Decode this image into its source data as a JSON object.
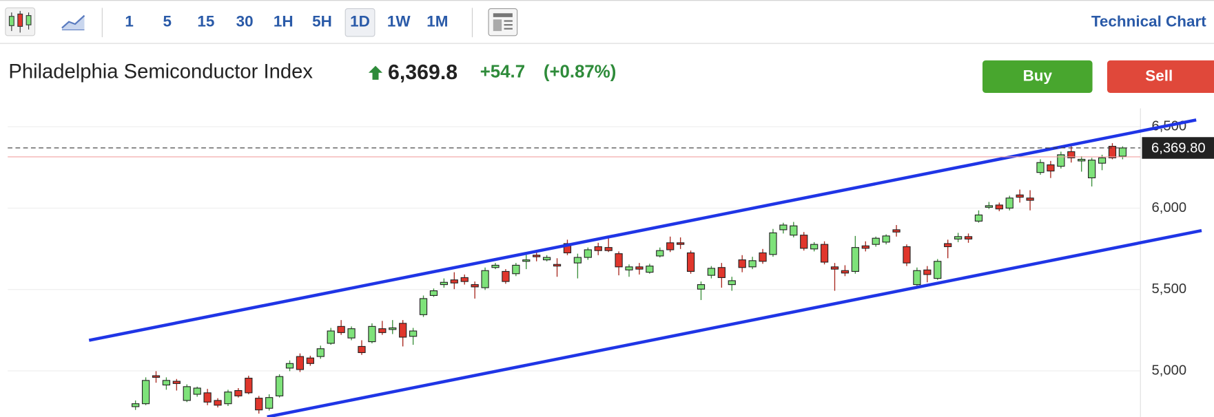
{
  "toolbar": {
    "intervals": [
      "1",
      "5",
      "15",
      "30",
      "1H",
      "5H",
      "1D",
      "1W",
      "1M"
    ],
    "selected": "1D",
    "link": "Technical Chart"
  },
  "header": {
    "title": "Philadelphia Semiconductor Index",
    "price": "6,369.8",
    "change": "+54.7",
    "change_percent": "(+0.87%)",
    "buy": "Buy",
    "sell": "Sell"
  },
  "chart_data": {
    "type": "candlestick",
    "ylim": [
      4717,
      6613
    ],
    "yticks": [
      {
        "value": 5000,
        "label": "5,000"
      },
      {
        "value": 5500,
        "label": "5,500"
      },
      {
        "value": 6000,
        "label": "6,000"
      },
      {
        "value": 6500,
        "label": "6,500"
      }
    ],
    "grid": true,
    "up_color": "#7ee27a",
    "down_color": "#e0362c",
    "last_price": {
      "value": 6369.8,
      "label": "6,369.80"
    },
    "reference_line": 6315.1,
    "series": [
      {
        "open": [
          4780,
          4798,
          4970,
          4913,
          4936,
          4818,
          4856,
          4865,
          4818,
          4798,
          4879,
          4955,
          4832,
          4770,
          4846,
          5017,
          5088,
          5079,
          5088,
          5169,
          5273,
          5202,
          5150,
          5179,
          5259,
          5254,
          5292,
          5212,
          5345,
          5463,
          5530,
          5559,
          5573,
          5530,
          5511,
          5635,
          5611,
          5597,
          5673,
          5711,
          5682,
          5654,
          5782,
          5663,
          5697,
          5763,
          5758,
          5720,
          5620,
          5639,
          5606,
          5706,
          5787,
          5787,
          5725,
          5502,
          5587,
          5635,
          5530,
          5682,
          5639,
          5725,
          5715,
          5867,
          5834,
          5834,
          5749,
          5777,
          5639,
          5616,
          5611,
          5768,
          5777,
          5791,
          5867,
          5763,
          5530,
          5620,
          5568,
          5782,
          5810,
          5825,
          5920,
          6005,
          6019,
          6000,
          6081,
          6062,
          6219,
          6266,
          6257,
          6347,
          6290,
          6186,
          6276,
          6380,
          6319
        ],
        "high": [
          4818,
          4960,
          4998,
          4960,
          4950,
          4917,
          4903,
          4889,
          4832,
          4884,
          4894,
          4970,
          4846,
          4856,
          4979,
          5064,
          5107,
          5093,
          5155,
          5264,
          5312,
          5273,
          5188,
          5292,
          5307,
          5312,
          5312,
          5264,
          5463,
          5506,
          5568,
          5606,
          5592,
          5549,
          5635,
          5663,
          5625,
          5663,
          5725,
          5744,
          5711,
          5692,
          5806,
          5720,
          5758,
          5787,
          5815,
          5734,
          5654,
          5663,
          5658,
          5758,
          5825,
          5820,
          5739,
          5549,
          5644,
          5663,
          5578,
          5711,
          5701,
          5749,
          5872,
          5910,
          5915,
          5853,
          5791,
          5796,
          5663,
          5649,
          5829,
          5796,
          5825,
          5839,
          5896,
          5777,
          5635,
          5644,
          5687,
          5806,
          5848,
          5844,
          5986,
          6038,
          6034,
          6076,
          6114,
          6110,
          6300,
          6290,
          6347,
          6380,
          6319,
          6309,
          6328,
          6399,
          6380
        ],
        "low": [
          4760,
          4789,
          4927,
          4884,
          4879,
          4808,
          4841,
          4789,
          4775,
          4784,
          4836,
          4856,
          4737,
          4756,
          4836,
          4998,
          4993,
          5031,
          5074,
          5160,
          5221,
          5188,
          5098,
          5169,
          5221,
          5226,
          5150,
          5160,
          5331,
          5454,
          5511,
          5502,
          5530,
          5444,
          5497,
          5625,
          5535,
          5582,
          5625,
          5673,
          5673,
          5578,
          5711,
          5568,
          5682,
          5711,
          5730,
          5587,
          5578,
          5592,
          5597,
          5697,
          5730,
          5749,
          5597,
          5435,
          5568,
          5511,
          5492,
          5606,
          5625,
          5658,
          5701,
          5844,
          5820,
          5739,
          5734,
          5654,
          5492,
          5582,
          5597,
          5734,
          5763,
          5777,
          5825,
          5644,
          5511,
          5544,
          5559,
          5692,
          5791,
          5787,
          5910,
          5995,
          5981,
          5986,
          6034,
          5986,
          6205,
          6185,
          6243,
          6280,
          6224,
          6133,
          6233,
          6300,
          6300
        ],
        "close": [
          4798,
          4941,
          4960,
          4941,
          4922,
          4903,
          4894,
          4808,
          4789,
          4870,
          4846,
          4865,
          4760,
          4836,
          4965,
          5045,
          5008,
          5045,
          5136,
          5245,
          5235,
          5259,
          5112,
          5273,
          5235,
          5264,
          5207,
          5245,
          5444,
          5492,
          5544,
          5540,
          5549,
          5516,
          5616,
          5649,
          5549,
          5649,
          5682,
          5701,
          5697,
          5644,
          5725,
          5697,
          5744,
          5739,
          5739,
          5639,
          5639,
          5625,
          5644,
          5739,
          5744,
          5777,
          5611,
          5530,
          5630,
          5573,
          5554,
          5635,
          5677,
          5673,
          5848,
          5896,
          5891,
          5753,
          5777,
          5668,
          5625,
          5601,
          5758,
          5753,
          5815,
          5829,
          5853,
          5663,
          5616,
          5592,
          5673,
          5763,
          5825,
          5810,
          5958,
          6015,
          5995,
          6062,
          6067,
          6048,
          6280,
          6228,
          6328,
          6309,
          6300,
          6295,
          6309,
          6309,
          6369.8
        ]
      }
    ]
  }
}
